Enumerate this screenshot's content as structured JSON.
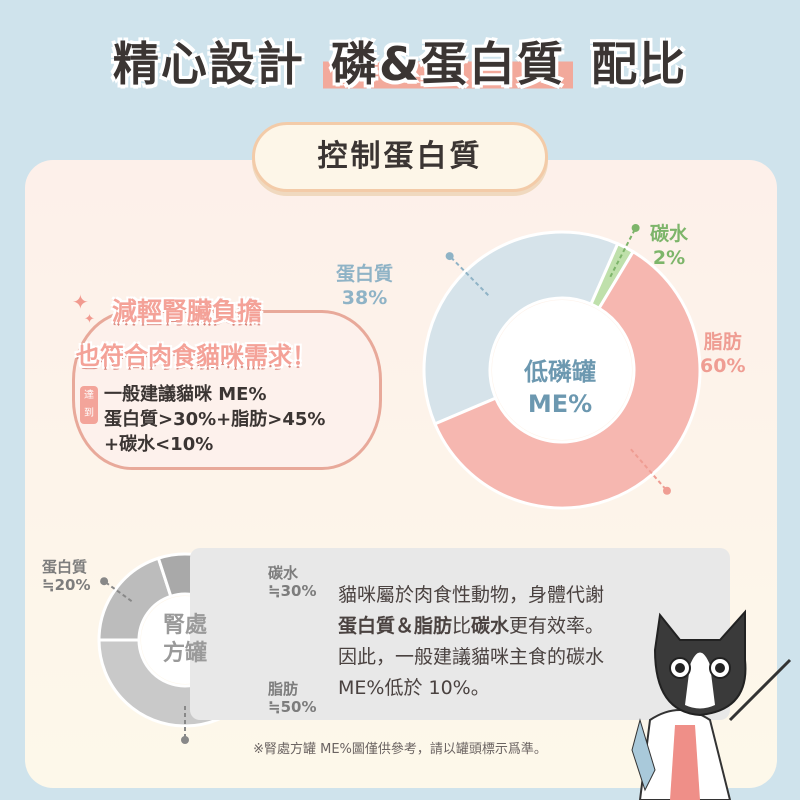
{
  "header": {
    "title_pre": "精心設計",
    "title_highlight": "磷&蛋白質",
    "title_post": "配比"
  },
  "subtitle": "控制蛋白質",
  "bubble": {
    "headline1": "減輕腎臟負擔",
    "headline2": "也符合肉食貓咪需求！",
    "badge": "達到",
    "line1": "一般建議貓咪 ME%",
    "line2": "蛋白質>30%+脂肪>45%",
    "line3": "+碳水<10%"
  },
  "explanation": {
    "l1": "貓咪屬於肉食性動物，身體代謝",
    "l2_b1": "蛋白質＆脂肪",
    "l2_t1": "比",
    "l2_b2": "碳水",
    "l2_t2": "更有效率。",
    "l3": "因此，一般建議貓咪主食的碳水",
    "l4": "ME%低於 10%。"
  },
  "footnote": "※腎處方罐 ME%圖僅供參考，請以罐頭標示爲準。",
  "chart_data": [
    {
      "type": "pie",
      "variant": "donut",
      "center_label": "低磷罐 ME%",
      "center_l1": "低磷罐",
      "center_l2": "ME%",
      "series": [
        {
          "label": "蛋白質",
          "display": "38%",
          "value": 38,
          "color": "#d6e3ea",
          "text_color": "#8fb3c6"
        },
        {
          "label": "碳水",
          "display": "2%",
          "value": 2,
          "color": "#bfe0ab",
          "text_color": "#7db56a"
        },
        {
          "label": "脂肪",
          "display": "60%",
          "value": 60,
          "color": "#f6b7b0",
          "text_color": "#ef9d93"
        }
      ]
    },
    {
      "type": "pie",
      "variant": "donut",
      "center_label": "腎處方罐",
      "center_l1": "腎處",
      "center_l2": "方罐",
      "series": [
        {
          "label": "蛋白質",
          "display": "≒20%",
          "value": 20,
          "color": "#bcbcbc"
        },
        {
          "label": "碳水",
          "display": "≒30%",
          "value": 30,
          "color": "#a9a9a9"
        },
        {
          "label": "脂肪",
          "display": "≒50%",
          "value": 50,
          "color": "#c9c9c9"
        }
      ]
    }
  ]
}
